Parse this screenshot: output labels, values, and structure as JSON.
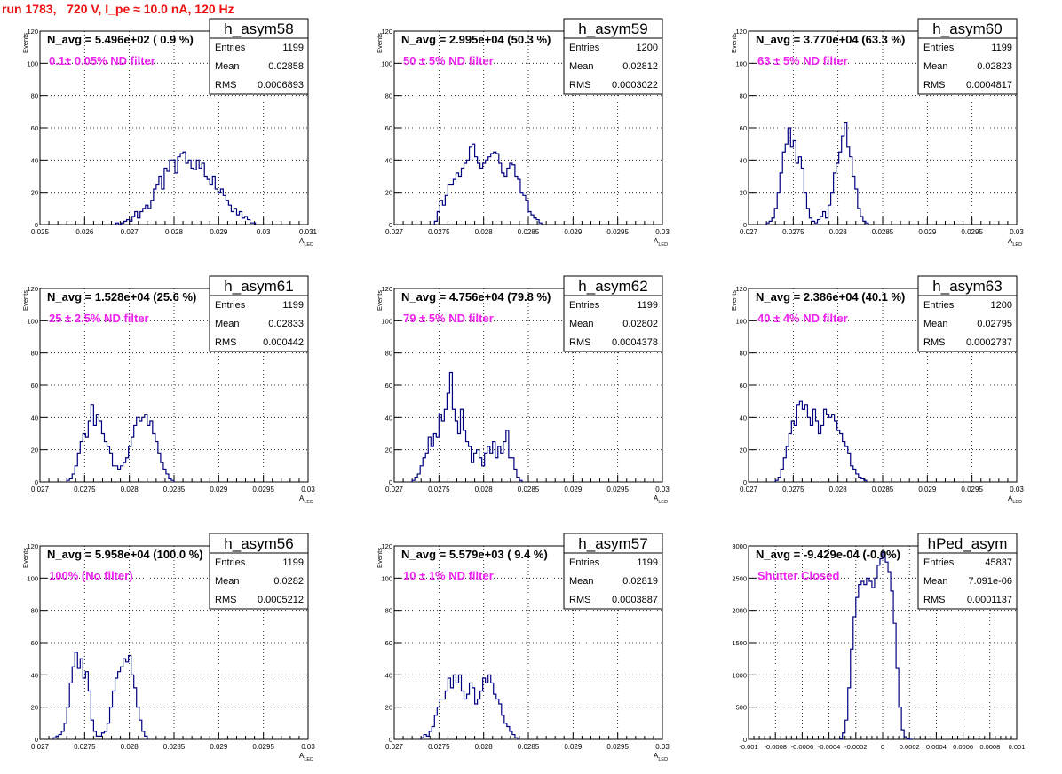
{
  "run_title": "run 1783,   720 V, I_pe ≈ 10.0 nA, 120 Hz",
  "colors": {
    "title": "#ee1111",
    "annotation": "#ee22ee",
    "histogram": "#000080",
    "text": "#000000",
    "grid": "#000000"
  },
  "chart_data": [
    {
      "type": "histogram",
      "name": "h_asym58",
      "nav": "N_avg = 5.496e+02 ( 0.9 %)",
      "filter": "0.1± 0.05% ND filter",
      "xlabel": "A_LED",
      "ylabel": "Events",
      "xlim": [
        0.025,
        0.031
      ],
      "ylim": [
        0,
        120
      ],
      "xticks": [
        0.025,
        0.026,
        0.027,
        0.028,
        0.029,
        0.03,
        0.031
      ],
      "xtick_labels": [
        "0.025",
        "0.026",
        "0.027",
        "0.028",
        "0.029",
        "0.03",
        "0.031"
      ],
      "yticks": [
        0,
        20,
        40,
        60,
        80,
        100,
        120
      ],
      "ytick_labels": [
        "0",
        "20",
        "40",
        "60",
        "80",
        "100",
        "120"
      ],
      "stats": {
        "entries": "1199",
        "mean": "0.02858",
        "rms": "0.0006893"
      },
      "bin_start": 0.0267,
      "bin_width": 6e-05,
      "counts": [
        1,
        0,
        1,
        2,
        3,
        2,
        5,
        8,
        4,
        8,
        10,
        12,
        10,
        15,
        22,
        25,
        30,
        22,
        35,
        33,
        40,
        40,
        32,
        42,
        44,
        45,
        38,
        40,
        35,
        34,
        40,
        35,
        38,
        30,
        28,
        25,
        30,
        22,
        20,
        22,
        18,
        15,
        12,
        8,
        10,
        6,
        8,
        4,
        5,
        3,
        1,
        1
      ]
    },
    {
      "type": "histogram",
      "name": "h_asym59",
      "nav": "N_avg = 2.995e+04 (50.3 %)",
      "filter": "50 ± 5% ND filter",
      "xlabel": "A_LED",
      "ylabel": "Events",
      "xlim": [
        0.027,
        0.03
      ],
      "ylim": [
        0,
        120
      ],
      "xticks": [
        0.027,
        0.0275,
        0.028,
        0.0285,
        0.029,
        0.0295,
        0.03
      ],
      "xtick_labels": [
        "0.027",
        "0.0275",
        "0.028",
        "0.0285",
        "0.029",
        "0.0295",
        "0.03"
      ],
      "yticks": [
        0,
        20,
        40,
        60,
        80,
        100,
        120
      ],
      "ytick_labels": [
        "0",
        "20",
        "40",
        "60",
        "80",
        "100",
        "120"
      ],
      "stats": {
        "entries": "1200",
        "mean": "0.02812",
        "rms": "0.0003022"
      },
      "bin_start": 0.02745,
      "bin_width": 3e-05,
      "counts": [
        2,
        8,
        15,
        12,
        18,
        25,
        25,
        28,
        32,
        30,
        35,
        38,
        40,
        48,
        50,
        42,
        38,
        35,
        38,
        40,
        42,
        44,
        45,
        44,
        38,
        32,
        30,
        35,
        38,
        37,
        30,
        28,
        20,
        18,
        15,
        8,
        6,
        4,
        3,
        1
      ]
    },
    {
      "type": "histogram",
      "name": "h_asym60",
      "nav": "N_avg = 3.770e+04 (63.3 %)",
      "filter": "63 ± 5% ND filter",
      "xlabel": "A_LED",
      "ylabel": "Events",
      "xlim": [
        0.027,
        0.03
      ],
      "ylim": [
        0,
        120
      ],
      "xticks": [
        0.027,
        0.0275,
        0.028,
        0.0285,
        0.029,
        0.0295,
        0.03
      ],
      "xtick_labels": [
        "0.027",
        "0.0275",
        "0.028",
        "0.0285",
        "0.029",
        "0.0295",
        "0.03"
      ],
      "yticks": [
        0,
        20,
        40,
        60,
        80,
        100,
        120
      ],
      "ytick_labels": [
        "0",
        "20",
        "40",
        "60",
        "80",
        "100",
        "120"
      ],
      "stats": {
        "entries": "1199",
        "mean": "0.02823",
        "rms": "0.0004817"
      },
      "bin_start": 0.0272,
      "bin_width": 3e-05,
      "counts": [
        1,
        2,
        4,
        10,
        20,
        32,
        45,
        50,
        60,
        48,
        52,
        38,
        42,
        35,
        20,
        10,
        4,
        2,
        1,
        3,
        5,
        8,
        4,
        12,
        20,
        32,
        38,
        45,
        55,
        63,
        48,
        42,
        30,
        22,
        10,
        5,
        2,
        1
      ]
    },
    {
      "type": "histogram",
      "name": "h_asym61",
      "nav": "N_avg = 1.528e+04 (25.6 %)",
      "filter": "25 ± 2.5% ND filter",
      "xlabel": "A_LED",
      "ylabel": "Events",
      "xlim": [
        0.027,
        0.03
      ],
      "ylim": [
        0,
        120
      ],
      "xticks": [
        0.027,
        0.0275,
        0.028,
        0.0285,
        0.029,
        0.0295,
        0.03
      ],
      "xtick_labels": [
        "0.027",
        "0.0275",
        "0.028",
        "0.0285",
        "0.029",
        "0.0295",
        "0.03"
      ],
      "yticks": [
        0,
        20,
        40,
        60,
        80,
        100,
        120
      ],
      "ytick_labels": [
        "0",
        "20",
        "40",
        "60",
        "80",
        "100",
        "120"
      ],
      "stats": {
        "entries": "1199",
        "mean": "0.02833",
        "rms": "0.000442"
      },
      "bin_start": 0.0273,
      "bin_width": 3e-05,
      "counts": [
        1,
        2,
        5,
        10,
        18,
        25,
        30,
        28,
        38,
        48,
        35,
        42,
        38,
        30,
        25,
        22,
        18,
        10,
        10,
        8,
        10,
        12,
        15,
        22,
        28,
        35,
        40,
        38,
        40,
        42,
        35,
        38,
        30,
        25,
        18,
        12,
        8,
        5,
        2,
        1
      ]
    },
    {
      "type": "histogram",
      "name": "h_asym62",
      "nav": "N_avg = 4.756e+04 (79.8 %)",
      "filter": "79 ± 5% ND filter",
      "xlabel": "A_LED",
      "ylabel": "Events",
      "xlim": [
        0.027,
        0.03
      ],
      "ylim": [
        0,
        120
      ],
      "xticks": [
        0.027,
        0.0275,
        0.028,
        0.0285,
        0.029,
        0.0295,
        0.03
      ],
      "xtick_labels": [
        "0.027",
        "0.0275",
        "0.028",
        "0.0285",
        "0.029",
        "0.0295",
        "0.03"
      ],
      "yticks": [
        0,
        20,
        40,
        60,
        80,
        100,
        120
      ],
      "ytick_labels": [
        "0",
        "20",
        "40",
        "60",
        "80",
        "100",
        "120"
      ],
      "stats": {
        "entries": "1199",
        "mean": "0.02802",
        "rms": "0.0004378"
      },
      "bin_start": 0.0272,
      "bin_width": 3e-05,
      "counts": [
        1,
        3,
        5,
        10,
        15,
        18,
        28,
        22,
        30,
        28,
        42,
        38,
        45,
        55,
        68,
        45,
        38,
        30,
        45,
        32,
        25,
        22,
        12,
        18,
        20,
        15,
        10,
        18,
        22,
        18,
        25,
        15,
        22,
        18,
        25,
        32,
        15,
        15,
        8,
        3,
        1
      ]
    },
    {
      "type": "histogram",
      "name": "h_asym63",
      "nav": "N_avg = 2.386e+04 (40.1 %)",
      "filter": "40 ± 4% ND filter",
      "xlabel": "A_LED",
      "ylabel": "Events",
      "xlim": [
        0.027,
        0.03
      ],
      "ylim": [
        0,
        120
      ],
      "xticks": [
        0.027,
        0.0275,
        0.028,
        0.0285,
        0.029,
        0.0295,
        0.03
      ],
      "xtick_labels": [
        "0.027",
        "0.0275",
        "0.028",
        "0.0285",
        "0.029",
        "0.0295",
        "0.03"
      ],
      "yticks": [
        0,
        20,
        40,
        60,
        80,
        100,
        120
      ],
      "ytick_labels": [
        "0",
        "20",
        "40",
        "60",
        "80",
        "100",
        "120"
      ],
      "stats": {
        "entries": "1200",
        "mean": "0.02795",
        "rms": "0.0002737"
      },
      "bin_start": 0.0273,
      "bin_width": 3e-05,
      "counts": [
        1,
        3,
        8,
        15,
        22,
        30,
        38,
        35,
        48,
        50,
        45,
        48,
        40,
        35,
        45,
        38,
        30,
        35,
        45,
        42,
        40,
        42,
        38,
        32,
        30,
        25,
        22,
        18,
        10,
        8,
        5,
        3,
        2,
        1
      ]
    },
    {
      "type": "histogram",
      "name": "h_asym56",
      "nav": "N_avg = 5.958e+04 (100.0 %)",
      "filter": "100% (No filter)",
      "xlabel": "A_LED",
      "ylabel": "Events",
      "xlim": [
        0.027,
        0.03
      ],
      "ylim": [
        0,
        120
      ],
      "xticks": [
        0.027,
        0.0275,
        0.028,
        0.0285,
        0.029,
        0.0295,
        0.03
      ],
      "xtick_labels": [
        "0.027",
        "0.0275",
        "0.028",
        "0.0285",
        "0.029",
        "0.0295",
        "0.03"
      ],
      "yticks": [
        0,
        20,
        40,
        60,
        80,
        100,
        120
      ],
      "ytick_labels": [
        "0",
        "20",
        "40",
        "60",
        "80",
        "100",
        "120"
      ],
      "stats": {
        "entries": "1199",
        "mean": "0.0282",
        "rms": "0.0005212"
      },
      "bin_start": 0.02715,
      "bin_width": 3e-05,
      "counts": [
        1,
        2,
        3,
        5,
        10,
        20,
        35,
        45,
        54,
        44,
        50,
        38,
        42,
        30,
        12,
        5,
        2,
        2,
        4,
        5,
        10,
        20,
        30,
        38,
        42,
        45,
        50,
        48,
        52,
        40,
        32,
        20,
        12,
        5,
        2
      ]
    },
    {
      "type": "histogram",
      "name": "h_asym57",
      "nav": "N_avg = 5.579e+03 ( 9.4 %)",
      "filter": "10 ± 1% ND filter",
      "xlabel": "A_LED",
      "ylabel": "Events",
      "xlim": [
        0.027,
        0.03
      ],
      "ylim": [
        0,
        120
      ],
      "xticks": [
        0.027,
        0.0275,
        0.028,
        0.0285,
        0.029,
        0.0295,
        0.03
      ],
      "xtick_labels": [
        "0.027",
        "0.0275",
        "0.028",
        "0.0285",
        "0.029",
        "0.0295",
        "0.03"
      ],
      "yticks": [
        0,
        20,
        40,
        60,
        80,
        100,
        120
      ],
      "ytick_labels": [
        "0",
        "20",
        "40",
        "60",
        "80",
        "100",
        "120"
      ],
      "stats": {
        "entries": "1199",
        "mean": "0.02819",
        "rms": "0.0003887"
      },
      "bin_start": 0.0273,
      "bin_width": 3e-05,
      "counts": [
        1,
        3,
        2,
        5,
        8,
        15,
        20,
        25,
        25,
        30,
        38,
        32,
        40,
        35,
        40,
        30,
        25,
        28,
        35,
        32,
        22,
        25,
        30,
        38,
        35,
        40,
        35,
        28,
        25,
        22,
        15,
        10,
        8,
        5,
        3,
        1
      ]
    },
    {
      "type": "histogram",
      "name": "hPed_asym",
      "nav": "N_avg = -9.429e-04 (-0.0%)",
      "filter": "Shutter Closed",
      "xlabel": "",
      "ylabel": "",
      "xlim": [
        -0.001,
        0.001
      ],
      "ylim": [
        0,
        3000
      ],
      "xticks": [
        -0.001,
        -0.0008,
        -0.0006,
        -0.0004,
        -0.0002,
        0,
        0.0002,
        0.0004,
        0.0006,
        0.0008,
        0.001
      ],
      "xtick_labels": [
        "-0.001",
        "-0.0008",
        "-0.0006",
        "-0.0004",
        "-0.0002",
        "0",
        "0.0002",
        "0.0004",
        "0.0006",
        "0.0008",
        "0.001"
      ],
      "yticks": [
        0,
        500,
        1000,
        1500,
        2000,
        2500,
        3000
      ],
      "ytick_labels": [
        "0",
        "500",
        "1000",
        "1500",
        "2000",
        "2500",
        "3000"
      ],
      "stats": {
        "entries": "45837",
        "mean": "7.091e-06",
        "rms": "0.0001137"
      },
      "bin_start": -0.00032,
      "bin_width": 2e-05,
      "counts": [
        10,
        100,
        300,
        800,
        1400,
        1900,
        2200,
        2400,
        2450,
        2400,
        2500,
        2450,
        2350,
        2500,
        2700,
        2800,
        2900,
        2750,
        2600,
        2300,
        1800,
        1100,
        500,
        150,
        40,
        10,
        0
      ]
    }
  ]
}
